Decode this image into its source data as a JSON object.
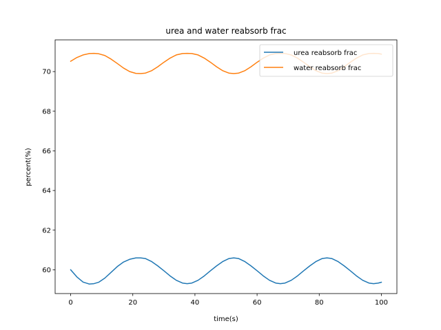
{
  "chart_data": {
    "type": "line",
    "title": "urea and water reabsorb frac",
    "xlabel": "time(s)",
    "ylabel": "percent(%)",
    "xlim": [
      -5,
      105
    ],
    "ylim": [
      58.8,
      71.6
    ],
    "xticks": [
      0,
      20,
      40,
      60,
      80,
      100
    ],
    "yticks": [
      60,
      62,
      64,
      66,
      68,
      70
    ],
    "legend_position": "top-right",
    "grid": false,
    "series": [
      {
        "name": "urea reabsorb frac",
        "color": "#1f77b4",
        "x": [
          0,
          2,
          4,
          6,
          7.5,
          9,
          11,
          13,
          15,
          17,
          19,
          21,
          22.5,
          24,
          26,
          28,
          30,
          32,
          34,
          36,
          37.5,
          39,
          41,
          43,
          45,
          47,
          49,
          51,
          52.5,
          54,
          56,
          58,
          60,
          62,
          64,
          66,
          67.5,
          69,
          71,
          73,
          75,
          77,
          79,
          81,
          82.5,
          84,
          86,
          88,
          90,
          92,
          94,
          96,
          97.5,
          99,
          100
        ],
        "y": [
          60.0,
          59.64,
          59.38,
          59.28,
          59.3,
          59.37,
          59.58,
          59.87,
          60.16,
          60.39,
          60.53,
          60.6,
          60.6,
          60.57,
          60.42,
          60.2,
          59.95,
          59.69,
          59.47,
          59.33,
          59.3,
          59.33,
          59.47,
          59.69,
          59.95,
          60.2,
          60.42,
          60.57,
          60.6,
          60.57,
          60.42,
          60.2,
          59.95,
          59.69,
          59.47,
          59.33,
          59.3,
          59.33,
          59.47,
          59.69,
          59.95,
          60.2,
          60.42,
          60.57,
          60.6,
          60.57,
          60.42,
          60.2,
          59.95,
          59.69,
          59.47,
          59.33,
          59.3,
          59.33,
          59.37
        ]
      },
      {
        "name": "water reabsorb frac",
        "color": "#ff7f0e",
        "x": [
          0,
          2,
          4,
          6,
          7.5,
          9,
          11,
          13,
          15,
          17,
          19,
          21,
          22.5,
          24,
          26,
          28,
          30,
          32,
          34,
          36,
          37.5,
          39,
          41,
          43,
          45,
          47,
          49,
          51,
          52.5,
          54,
          56,
          58,
          60,
          62,
          64,
          66,
          67.5,
          69,
          71,
          73,
          75,
          77,
          79,
          81,
          82.5,
          84,
          86,
          88,
          90,
          92,
          94,
          96,
          97.5,
          99,
          100
        ],
        "y": [
          70.52,
          70.71,
          70.84,
          70.91,
          70.92,
          70.9,
          70.81,
          70.63,
          70.41,
          70.18,
          70.0,
          69.91,
          69.9,
          69.92,
          70.04,
          70.24,
          70.47,
          70.68,
          70.84,
          70.91,
          70.92,
          70.91,
          70.84,
          70.68,
          70.47,
          70.24,
          70.04,
          69.92,
          69.9,
          69.92,
          70.04,
          70.24,
          70.47,
          70.68,
          70.84,
          70.91,
          70.92,
          70.91,
          70.84,
          70.68,
          70.47,
          70.24,
          70.04,
          69.92,
          69.9,
          69.92,
          70.04,
          70.24,
          70.47,
          70.68,
          70.84,
          70.91,
          70.92,
          70.91,
          70.88
        ]
      }
    ]
  }
}
